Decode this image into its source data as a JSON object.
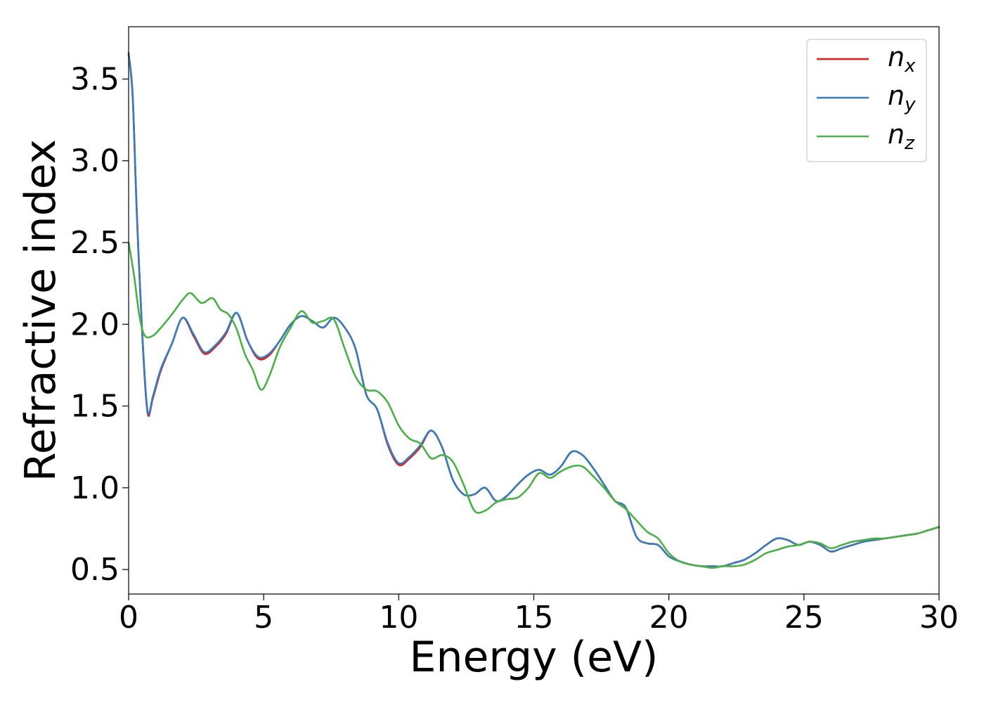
{
  "chart_data": {
    "type": "line",
    "title": "",
    "xlabel": "Energy (eV)",
    "ylabel": "Refractive index",
    "xlim": [
      0,
      30
    ],
    "ylim": [
      0.35,
      3.82
    ],
    "xticks": [
      "0",
      "5",
      "10",
      "15",
      "20",
      "25",
      "30"
    ],
    "yticks": [
      "0.5",
      "1.0",
      "1.5",
      "2.0",
      "2.5",
      "3.0",
      "3.5"
    ],
    "grid": false,
    "legend_position": "top-right",
    "series": [
      {
        "name": "n",
        "subscript": "x",
        "color": "#e41a1c",
        "x": [
          0,
          0.15,
          0.3,
          0.5,
          0.7,
          0.9,
          1.2,
          1.6,
          2.0,
          2.4,
          2.8,
          3.2,
          3.6,
          4.0,
          4.4,
          4.8,
          5.2,
          5.6,
          6.0,
          6.4,
          6.8,
          7.2,
          7.6,
          8.0,
          8.4,
          8.8,
          9.2,
          9.6,
          10.0,
          10.4,
          10.8,
          11.2,
          11.6,
          12.0,
          12.4,
          12.8,
          13.2,
          13.6,
          14.0,
          14.4,
          14.8,
          15.2,
          15.6,
          16.0,
          16.4,
          16.8,
          17.2,
          17.6,
          18.0,
          18.4,
          18.8,
          19.2,
          19.6,
          20.0,
          20.4,
          20.8,
          21.2,
          21.6,
          22.0,
          22.4,
          22.8,
          23.2,
          23.6,
          24.0,
          24.4,
          24.8,
          25.2,
          25.6,
          26.0,
          26.4,
          26.8,
          27.2,
          27.6,
          28.0,
          28.4,
          28.8,
          29.2,
          29.6,
          30.0
        ],
        "y": [
          3.66,
          3.4,
          2.7,
          1.95,
          1.46,
          1.55,
          1.72,
          1.88,
          2.04,
          1.93,
          1.82,
          1.86,
          1.94,
          2.07,
          1.9,
          1.79,
          1.81,
          1.9,
          2.0,
          2.05,
          2.02,
          1.98,
          2.04,
          1.98,
          1.85,
          1.57,
          1.48,
          1.26,
          1.14,
          1.18,
          1.25,
          1.35,
          1.25,
          1.05,
          0.96,
          0.96,
          1.0,
          0.92,
          0.95,
          1.02,
          1.08,
          1.11,
          1.08,
          1.13,
          1.22,
          1.2,
          1.12,
          1.02,
          0.92,
          0.88,
          0.7,
          0.66,
          0.65,
          0.58,
          0.55,
          0.53,
          0.52,
          0.52,
          0.52,
          0.54,
          0.56,
          0.6,
          0.65,
          0.69,
          0.68,
          0.65,
          0.67,
          0.65,
          0.61,
          0.63,
          0.65,
          0.67,
          0.68,
          0.69,
          0.7,
          0.71,
          0.72,
          0.74,
          0.76
        ]
      },
      {
        "name": "n",
        "subscript": "y",
        "color": "#377eb8",
        "x": [
          0,
          0.15,
          0.3,
          0.5,
          0.7,
          0.9,
          1.2,
          1.6,
          2.0,
          2.4,
          2.8,
          3.2,
          3.6,
          4.0,
          4.4,
          4.8,
          5.2,
          5.6,
          6.0,
          6.4,
          6.8,
          7.2,
          7.6,
          8.0,
          8.4,
          8.8,
          9.2,
          9.6,
          10.0,
          10.4,
          10.8,
          11.2,
          11.6,
          12.0,
          12.4,
          12.8,
          13.2,
          13.6,
          14.0,
          14.4,
          14.8,
          15.2,
          15.6,
          16.0,
          16.4,
          16.8,
          17.2,
          17.6,
          18.0,
          18.4,
          18.8,
          19.2,
          19.6,
          20.0,
          20.4,
          20.8,
          21.2,
          21.6,
          22.0,
          22.4,
          22.8,
          23.2,
          23.6,
          24.0,
          24.4,
          24.8,
          25.2,
          25.6,
          26.0,
          26.4,
          26.8,
          27.2,
          27.6,
          28.0,
          28.4,
          28.8,
          29.2,
          29.6,
          30.0
        ],
        "y": [
          3.65,
          3.39,
          2.69,
          1.96,
          1.47,
          1.56,
          1.73,
          1.88,
          2.04,
          1.94,
          1.83,
          1.87,
          1.95,
          2.07,
          1.9,
          1.8,
          1.82,
          1.9,
          2.0,
          2.05,
          2.02,
          1.98,
          2.04,
          1.98,
          1.85,
          1.57,
          1.48,
          1.27,
          1.15,
          1.19,
          1.26,
          1.35,
          1.25,
          1.05,
          0.96,
          0.96,
          1.0,
          0.92,
          0.95,
          1.02,
          1.08,
          1.11,
          1.08,
          1.13,
          1.22,
          1.2,
          1.12,
          1.02,
          0.92,
          0.88,
          0.7,
          0.66,
          0.65,
          0.58,
          0.55,
          0.53,
          0.52,
          0.52,
          0.52,
          0.54,
          0.56,
          0.6,
          0.65,
          0.69,
          0.68,
          0.65,
          0.67,
          0.65,
          0.61,
          0.63,
          0.65,
          0.67,
          0.68,
          0.69,
          0.7,
          0.71,
          0.72,
          0.74,
          0.76
        ]
      },
      {
        "name": "n",
        "subscript": "z",
        "color": "#4daf4a",
        "x": [
          0,
          0.2,
          0.4,
          0.6,
          0.9,
          1.2,
          1.6,
          2.0,
          2.3,
          2.7,
          3.1,
          3.4,
          3.7,
          4.0,
          4.3,
          4.6,
          4.9,
          5.2,
          5.6,
          6.0,
          6.4,
          6.8,
          7.2,
          7.6,
          8.0,
          8.4,
          8.8,
          9.2,
          9.6,
          10.0,
          10.4,
          10.8,
          11.2,
          11.6,
          12.0,
          12.4,
          12.8,
          13.2,
          13.6,
          14.0,
          14.4,
          14.8,
          15.2,
          15.6,
          16.0,
          16.4,
          16.8,
          17.2,
          17.6,
          18.0,
          18.4,
          18.8,
          19.2,
          19.6,
          20.0,
          20.4,
          20.8,
          21.2,
          21.6,
          22.0,
          22.4,
          22.8,
          23.2,
          23.6,
          24.0,
          24.4,
          24.8,
          25.2,
          25.6,
          26.0,
          26.4,
          26.8,
          27.2,
          27.6,
          28.0,
          28.4,
          28.8,
          29.2,
          29.6,
          30.0
        ],
        "y": [
          2.5,
          2.3,
          2.05,
          1.93,
          1.93,
          1.98,
          2.06,
          2.15,
          2.19,
          2.13,
          2.16,
          2.09,
          2.06,
          1.97,
          1.82,
          1.72,
          1.6,
          1.68,
          1.86,
          1.98,
          2.08,
          2.01,
          2.02,
          2.03,
          1.85,
          1.68,
          1.6,
          1.59,
          1.52,
          1.38,
          1.3,
          1.27,
          1.18,
          1.2,
          1.16,
          1.02,
          0.86,
          0.86,
          0.91,
          0.93,
          0.94,
          1.0,
          1.09,
          1.06,
          1.1,
          1.13,
          1.13,
          1.07,
          1.0,
          0.92,
          0.87,
          0.8,
          0.73,
          0.69,
          0.6,
          0.55,
          0.53,
          0.52,
          0.51,
          0.52,
          0.52,
          0.53,
          0.56,
          0.6,
          0.62,
          0.64,
          0.65,
          0.67,
          0.66,
          0.63,
          0.65,
          0.67,
          0.68,
          0.69,
          0.69,
          0.7,
          0.71,
          0.72,
          0.74,
          0.76
        ]
      }
    ]
  }
}
